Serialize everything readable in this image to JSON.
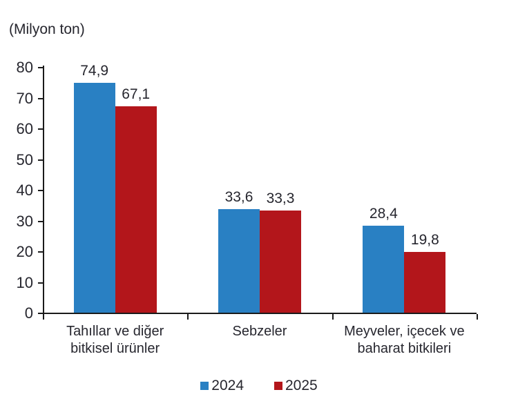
{
  "chart_data": {
    "type": "bar",
    "unit_label": "(Milyon ton)",
    "categories": [
      "Tahıllar ve diğer\nbitkisel ürünler",
      "Sebzeler",
      "Meyveler, içecek ve\nbaharat  bitkileri"
    ],
    "series": [
      {
        "name": "2024",
        "color": "#2980c3",
        "values": [
          74.9,
          33.6,
          28.4
        ]
      },
      {
        "name": "2025",
        "color": "#b3161b",
        "values": [
          67.1,
          33.3,
          19.8
        ]
      }
    ],
    "ylim": [
      0,
      80
    ],
    "ytick_step": 10,
    "yticks": [
      0,
      10,
      20,
      30,
      40,
      50,
      60,
      70,
      80
    ],
    "decimal_separator": ",",
    "grid": false,
    "legend_position": "bottom",
    "axis_color": "#1a1a1a",
    "background_color": "#ffffff"
  }
}
